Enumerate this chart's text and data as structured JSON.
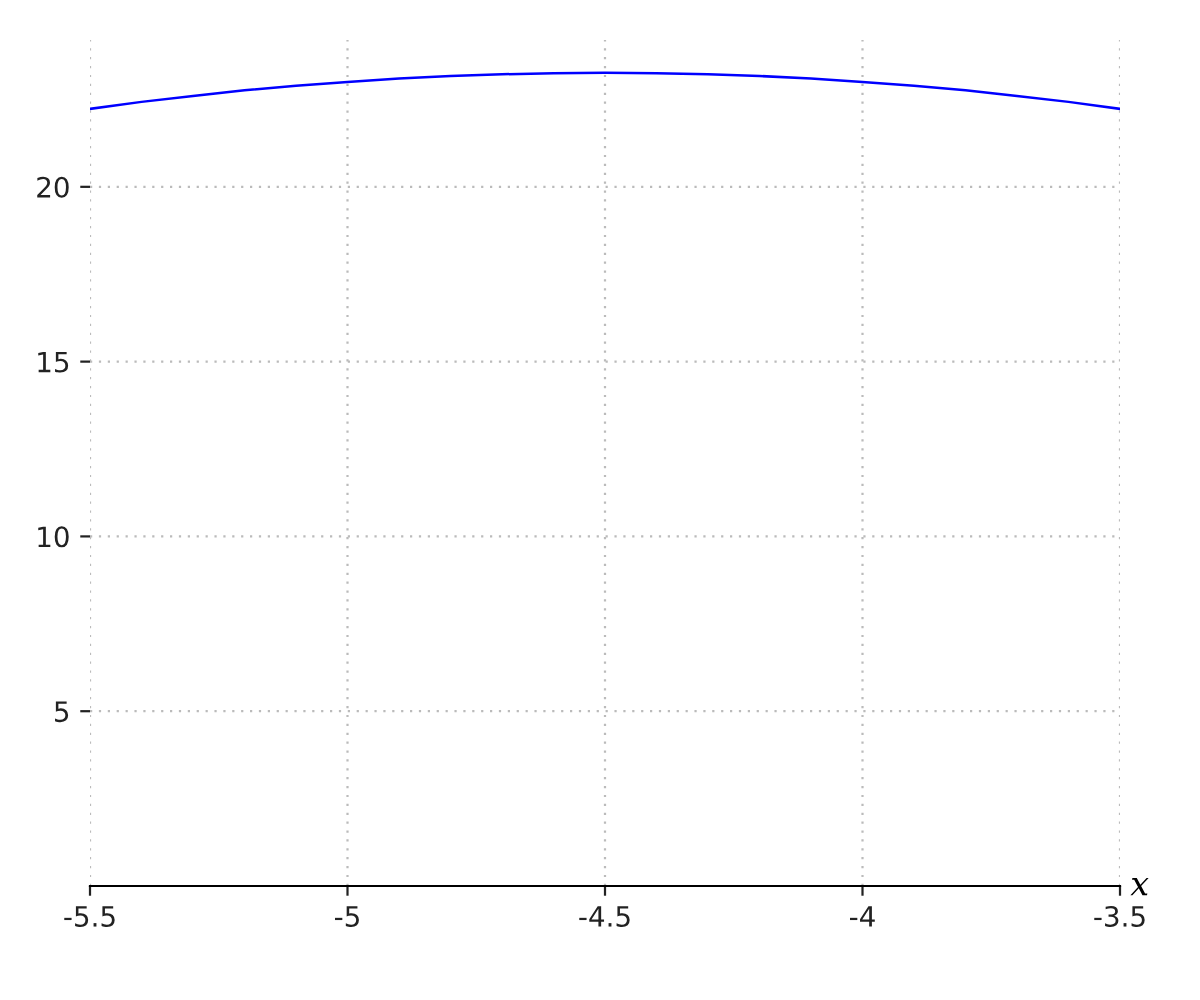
{
  "chart_data": {
    "type": "line",
    "xlabel": "x",
    "x": [
      -5.5,
      -5.4,
      -5.3,
      -5.2,
      -5.1,
      -5.0,
      -4.9,
      -4.8,
      -4.7,
      -4.6,
      -4.5,
      -4.4,
      -4.3,
      -4.2,
      -4.1,
      -4.0,
      -3.9,
      -3.8,
      -3.7,
      -3.6,
      -3.5
    ],
    "series": [
      {
        "color": "#0000ff",
        "values": [
          22.23,
          22.43,
          22.6,
          22.76,
          22.89,
          23.0,
          23.1,
          23.17,
          23.22,
          23.25,
          23.26,
          23.25,
          23.22,
          23.17,
          23.1,
          23.0,
          22.89,
          22.76,
          22.6,
          22.43,
          22.23
        ]
      }
    ],
    "xlim": [
      -5.5,
      -3.5
    ],
    "ylim": [
      0,
      24.2
    ],
    "xticks": [
      {
        "value": -5.5,
        "label": "-5.5"
      },
      {
        "value": -5,
        "label": "-5"
      },
      {
        "value": -4.5,
        "label": "-4.5"
      },
      {
        "value": -4,
        "label": "-4"
      },
      {
        "value": -3.5,
        "label": "-3.5"
      }
    ],
    "yticks": [
      5,
      10,
      15,
      20
    ],
    "grid": true,
    "marker": "none",
    "line_style": "solid"
  }
}
